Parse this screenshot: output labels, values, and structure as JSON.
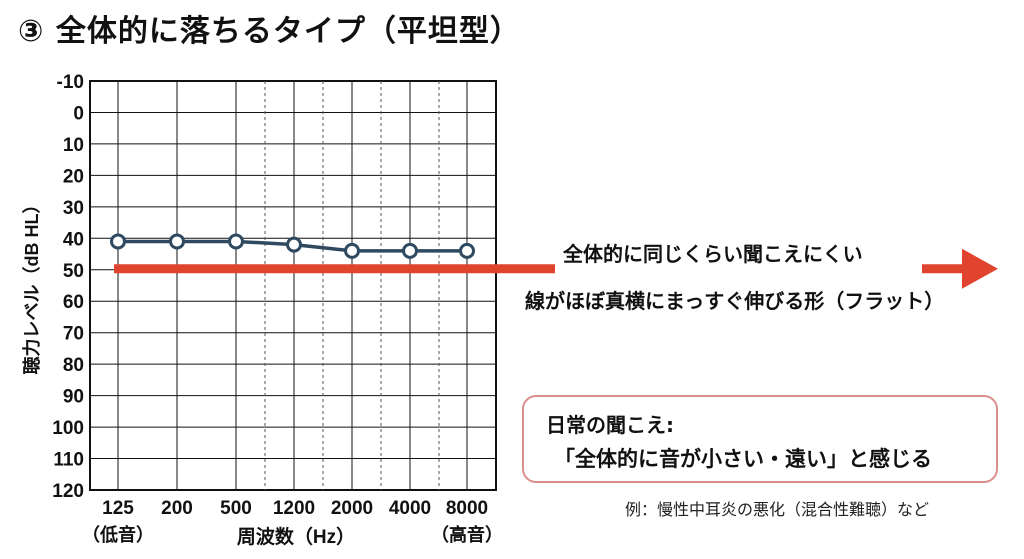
{
  "page": {
    "title": "③ 全体的に落ちるタイプ（平坦型）"
  },
  "annotations": {
    "arrow_text": "全体的に同じくらい聞こえにくい",
    "shape_text": "線がほぼ真横にまっすぐ伸びる形（フラット）"
  },
  "callout": {
    "heading": "日常の聞こえ:",
    "body": "「全体的に音が小さい・遠い」と感じる"
  },
  "example_text": "例：慢性中耳炎の悪化（混合性難聴）など",
  "colors": {
    "line": "#2f4a60",
    "arrow": "#e0442f",
    "callout_border": "#d9908a",
    "grid": "#111111"
  },
  "chart_data": {
    "type": "line",
    "title": "",
    "xlabel": "周波数（Hz）",
    "ylabel": "聴力レベル（dB HL）",
    "categories": [
      "125",
      "200",
      "500",
      "1200",
      "2000",
      "4000",
      "8000"
    ],
    "category_sublabels": [
      "（低音）",
      "",
      "",
      "",
      "",
      "",
      "（高音）"
    ],
    "dashed_gridlines_at": [
      "750",
      "1500",
      "3000",
      "6000"
    ],
    "y_ticks": [
      "-10",
      "0",
      "10",
      "20",
      "30",
      "40",
      "50",
      "60",
      "70",
      "80",
      "90",
      "100",
      "110",
      "120"
    ],
    "ylim": [
      -10,
      120
    ],
    "y_inverted": true,
    "series": [
      {
        "values": [
          41,
          41,
          41,
          42,
          44,
          44,
          44
        ]
      }
    ],
    "reference_arrow_level": 50
  }
}
